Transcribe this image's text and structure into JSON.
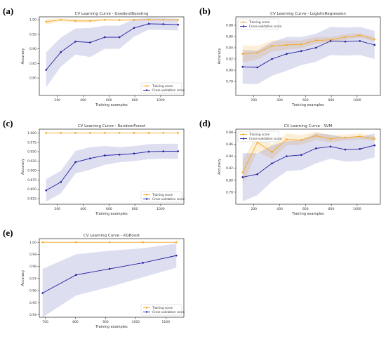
{
  "panels": [
    {
      "label": "(a)",
      "chart_data": {
        "type": "line",
        "title": "CV Learning Curve - GradientBoosting",
        "xlabel": "Training examples",
        "ylabel": "Accuracy",
        "xlim": [
          60,
          1180
        ],
        "ylim": [
          0.74,
          1.01
        ],
        "xticks": [
          200,
          400,
          600,
          800,
          1000
        ],
        "yticks": [
          0.8,
          0.85,
          0.9,
          0.95,
          1.0
        ],
        "ytick_labels": [
          "0.80",
          "0.85",
          "0.90",
          "0.95",
          "1.00"
        ],
        "x": [
          113,
          227,
          340,
          454,
          567,
          681,
          794,
          908,
          1021,
          1135
        ],
        "series": [
          {
            "name": "Training score",
            "color": "#f5a623",
            "values": [
              0.993,
              1.0,
              0.996,
              0.996,
              1.0,
              0.999,
              1.0,
              1.0,
              1.0,
              1.0
            ],
            "std": [
              0.01,
              0.005,
              0.006,
              0.006,
              0.003,
              0.003,
              0.002,
              0.002,
              0.002,
              0.002
            ]
          },
          {
            "name": "Cross-validation score",
            "color": "#1f1fa0",
            "values": [
              0.828,
              0.889,
              0.925,
              0.922,
              0.94,
              0.94,
              0.972,
              0.986,
              0.985,
              0.983
            ],
            "std": [
              0.06,
              0.05,
              0.045,
              0.05,
              0.04,
              0.04,
              0.03,
              0.02,
              0.02,
              0.02
            ]
          }
        ],
        "legend": "lower-right",
        "grid": false
      }
    },
    {
      "label": "(b)",
      "chart_data": {
        "type": "line",
        "title": "CV Learning Curve - LogisticRegression",
        "xlabel": "Training examples",
        "ylabel": "Accuracy",
        "xlim": [
          60,
          1180
        ],
        "ylim": [
          0.755,
          0.895
        ],
        "xticks": [
          200,
          400,
          600,
          800,
          1000
        ],
        "yticks": [
          0.78,
          0.8,
          0.82,
          0.84,
          0.86,
          0.88
        ],
        "ytick_labels": [
          "0.78",
          "0.80",
          "0.82",
          "0.84",
          "0.86",
          "0.88"
        ],
        "x": [
          113,
          227,
          340,
          454,
          567,
          681,
          794,
          908,
          1021,
          1135
        ],
        "series": [
          {
            "name": "Training score",
            "color": "#f5a623",
            "values": [
              0.829,
              0.831,
              0.843,
              0.845,
              0.846,
              0.853,
              0.854,
              0.859,
              0.862,
              0.855
            ],
            "std": [
              0.015,
              0.012,
              0.01,
              0.008,
              0.007,
              0.006,
              0.005,
              0.005,
              0.004,
              0.004
            ]
          },
          {
            "name": "Cross-validation score",
            "color": "#1f1fa0",
            "values": [
              0.806,
              0.805,
              0.82,
              0.829,
              0.834,
              0.84,
              0.852,
              0.851,
              0.852,
              0.845
            ],
            "std": [
              0.03,
              0.03,
              0.03,
              0.03,
              0.025,
              0.025,
              0.025,
              0.025,
              0.025,
              0.025
            ]
          }
        ],
        "legend": "upper-left",
        "grid": false
      }
    },
    {
      "label": "(c)",
      "chart_data": {
        "type": "line",
        "title": "CV Learning Curve - RandomForest",
        "xlabel": "Training examples",
        "ylabel": "Accuracy",
        "xlim": [
          60,
          1180
        ],
        "ylim": [
          0.81,
          1.01
        ],
        "xticks": [
          200,
          400,
          600,
          800,
          1000
        ],
        "yticks": [
          0.825,
          0.85,
          0.875,
          0.9,
          0.925,
          0.95,
          0.975,
          1.0
        ],
        "ytick_labels": [
          "0.825",
          "0.850",
          "0.875",
          "0.900",
          "0.925",
          "0.950",
          "0.975",
          "1.000"
        ],
        "x": [
          113,
          227,
          340,
          454,
          567,
          681,
          794,
          908,
          1021,
          1135
        ],
        "series": [
          {
            "name": "Training score",
            "color": "#f5a623",
            "values": [
              1.0,
              1.0,
              1.0,
              1.0,
              1.0,
              1.0,
              1.0,
              1.0,
              1.0,
              1.0
            ],
            "std": [
              0,
              0,
              0,
              0,
              0,
              0,
              0,
              0,
              0,
              0
            ]
          },
          {
            "name": "Cross-validation score",
            "color": "#1f1fa0",
            "values": [
              0.847,
              0.869,
              0.922,
              0.932,
              0.94,
              0.942,
              0.945,
              0.95,
              0.951,
              0.951
            ],
            "std": [
              0.03,
              0.03,
              0.03,
              0.03,
              0.025,
              0.02,
              0.02,
              0.02,
              0.02,
              0.02
            ]
          }
        ],
        "legend": "lower-right",
        "grid": false
      }
    },
    {
      "label": "(d)",
      "chart_data": {
        "type": "line",
        "title": "CV Learning Curve - SVM",
        "xlabel": "Training examples",
        "ylabel": "Accuracy",
        "xlim": [
          60,
          1180
        ],
        "ylim": [
          0.76,
          0.885
        ],
        "xticks": [
          200,
          400,
          600,
          800,
          1000
        ],
        "yticks": [
          0.78,
          0.8,
          0.82,
          0.84,
          0.86,
          0.88
        ],
        "ytick_labels": [
          "0.78",
          "0.80",
          "0.82",
          "0.84",
          "0.86",
          "0.88"
        ],
        "x": [
          113,
          227,
          340,
          454,
          567,
          681,
          794,
          908,
          1021,
          1135
        ],
        "series": [
          {
            "name": "Training score",
            "color": "#f5a623",
            "values": [
              0.813,
              0.863,
              0.847,
              0.868,
              0.867,
              0.874,
              0.869,
              0.871,
              0.873,
              0.869
            ],
            "std": [
              0.02,
              0.015,
              0.012,
              0.01,
              0.008,
              0.007,
              0.006,
              0.005,
              0.005,
              0.004
            ]
          },
          {
            "name": "Cross-validation score",
            "color": "#1f1fa0",
            "values": [
              0.805,
              0.81,
              0.828,
              0.84,
              0.842,
              0.853,
              0.856,
              0.851,
              0.852,
              0.858
            ],
            "std": [
              0.04,
              0.035,
              0.03,
              0.025,
              0.025,
              0.025,
              0.02,
              0.02,
              0.02,
              0.02
            ]
          }
        ],
        "legend": "upper-left",
        "grid": false
      }
    },
    {
      "label": "(e)",
      "chart_data": {
        "type": "line",
        "title": "CV Learning Curve - XGBoost",
        "xlabel": "Training examples",
        "ylabel": "Accuracy",
        "xlim": [
          680,
          1160
        ],
        "ylim": [
          0.938,
          1.003
        ],
        "xticks": [
          700,
          800,
          900,
          1000,
          1100
        ],
        "yticks": [
          0.94,
          0.95,
          0.96,
          0.97,
          0.98,
          0.99,
          1.0
        ],
        "ytick_labels": [
          "0.94",
          "0.95",
          "0.96",
          "0.97",
          "0.98",
          "0.99",
          "1.00"
        ],
        "x": [
          691,
          802,
          913,
          1024,
          1135
        ],
        "series": [
          {
            "name": "Training score",
            "color": "#f5a623",
            "values": [
              1.0,
              1.0,
              1.0,
              1.0,
              1.0
            ],
            "std": [
              0,
              0,
              0,
              0,
              0
            ]
          },
          {
            "name": "Cross-validation score",
            "color": "#1f1fa0",
            "values": [
              0.958,
              0.973,
              0.978,
              0.983,
              0.989
            ],
            "std": [
              0.02,
              0.017,
              0.015,
              0.012,
              0.01
            ]
          }
        ],
        "legend": "lower-right",
        "grid": false
      }
    }
  ]
}
